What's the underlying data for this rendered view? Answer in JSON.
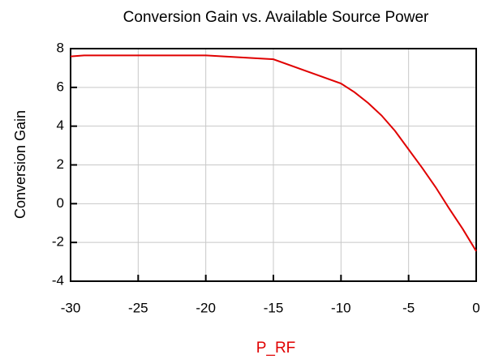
{
  "chart_data": {
    "type": "line",
    "title": "Conversion Gain vs. Available Source Power",
    "x_label": "P_RF",
    "y_label": "Conversion Gain",
    "x": [
      -30,
      -29,
      -20,
      -15,
      -10,
      -9,
      -8,
      -7,
      -6,
      -5,
      -4,
      -3,
      -2,
      -1,
      0
    ],
    "series": [
      {
        "name": "Conversion Gain",
        "color": "#e00000",
        "values": [
          7.6,
          7.65,
          7.65,
          7.45,
          6.2,
          5.75,
          5.2,
          4.55,
          3.75,
          2.8,
          1.85,
          0.85,
          -0.25,
          -1.3,
          -2.45
        ]
      }
    ],
    "xlim": [
      -30,
      0
    ],
    "xticks": [
      -30,
      -25,
      -20,
      -15,
      -10,
      -5,
      0
    ],
    "ylim": [
      -4,
      8
    ],
    "yticks": [
      -4,
      -2,
      0,
      2,
      4,
      6,
      8
    ],
    "grid": true
  }
}
